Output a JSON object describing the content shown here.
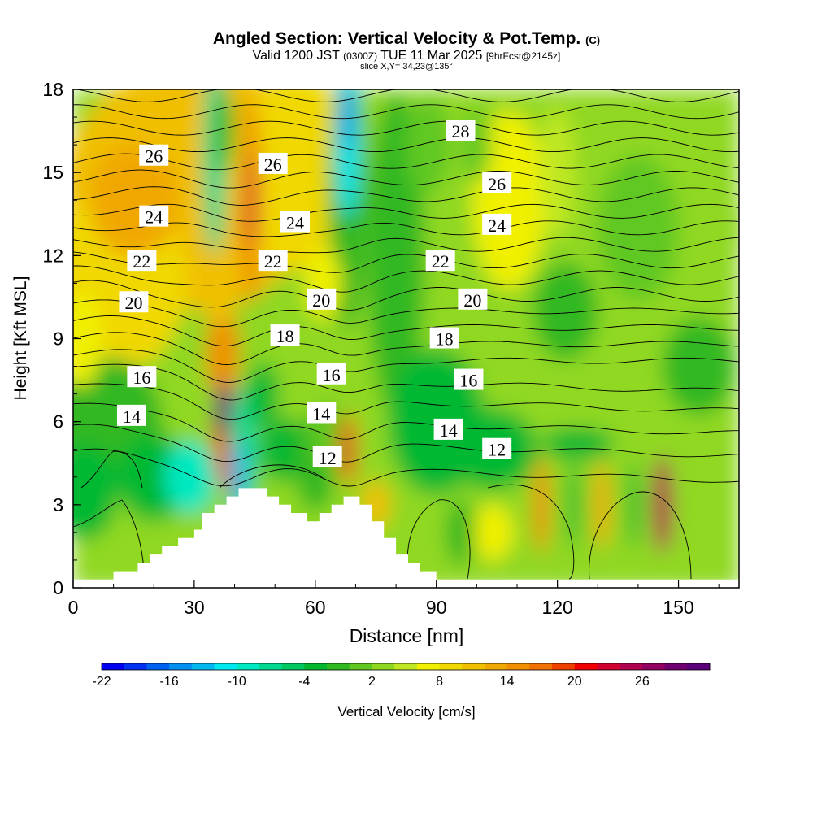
{
  "figure": {
    "title_main": "Angled Section: Vertical Velocity & Pot.Temp.",
    "title_units": "(C)",
    "subtitle_valid": "Valid 1200 JST",
    "subtitle_utc": "(0300Z)",
    "subtitle_date": "TUE 11 Mar 2025",
    "subtitle_fcst": "[9hrFcst@2145z]",
    "slice_label": "slice X,Y= 34,23@135°"
  },
  "chart_data": {
    "type": "heatmap",
    "title": "Angled Section: Vertical Velocity & Pot.Temp. (C)",
    "xlabel": "Distance [nm]",
    "ylabel": "Height [Kft MSL]",
    "xlim": [
      0,
      165
    ],
    "ylim": [
      0,
      18
    ],
    "x_ticks": [
      0,
      30,
      60,
      90,
      120,
      150
    ],
    "y_ticks": [
      0,
      3,
      6,
      9,
      12,
      15,
      18
    ],
    "colorbar": {
      "label": "Vertical Velocity [cm/s]",
      "tick_labels": [
        "-22",
        "-16",
        "-10",
        "-4",
        "2",
        "8",
        "14",
        "20",
        "26"
      ],
      "levels": [
        -22,
        -20,
        -18,
        -16,
        -14,
        -12,
        -10,
        -8,
        -6,
        -4,
        -2,
        0,
        2,
        4,
        6,
        8,
        10,
        12,
        14,
        16,
        18,
        20,
        22,
        24,
        26,
        28,
        30
      ],
      "colors": [
        "#0000f0",
        "#0030f0",
        "#0060f0",
        "#0090f0",
        "#00b8f0",
        "#00e8f0",
        "#00e8c0",
        "#00d890",
        "#00c860",
        "#00b830",
        "#30b820",
        "#60c820",
        "#90d820",
        "#c0e820",
        "#f0f000",
        "#f0d800",
        "#f0c000",
        "#f0a800",
        "#f09000",
        "#f07000",
        "#f04000",
        "#f00000",
        "#d00030",
        "#b00050",
        "#900060",
        "#700070",
        "#5a0078"
      ]
    },
    "velocity_features": [
      {
        "x": 37,
        "z": 6.5,
        "value": 30
      },
      {
        "x": 44,
        "z": 14,
        "value": 20
      },
      {
        "x": 68,
        "z": 5,
        "value": 22
      },
      {
        "x": 41,
        "z": 4,
        "value": -14
      },
      {
        "x": 68,
        "z": 17,
        "value": -20
      },
      {
        "x": 29,
        "z": 4,
        "value": -10
      },
      {
        "x": 15,
        "z": 14,
        "value": 12
      },
      {
        "x": 108,
        "z": 14,
        "value": 6
      },
      {
        "x": 146,
        "z": 3,
        "value": 24
      },
      {
        "x": 116,
        "z": 3,
        "value": 14
      },
      {
        "x": 131,
        "z": 3,
        "value": 12
      }
    ],
    "theta_contour_labels": [
      {
        "text": "26",
        "x": 20,
        "z": 15.6
      },
      {
        "text": "24",
        "x": 20,
        "z": 13.4
      },
      {
        "text": "22",
        "x": 17,
        "z": 11.8
      },
      {
        "text": "20",
        "x": 15,
        "z": 10.3
      },
      {
        "text": "16",
        "x": 17,
        "z": 7.6
      },
      {
        "text": "14",
        "x": 14.5,
        "z": 6.2
      },
      {
        "text": "26",
        "x": 49.5,
        "z": 15.3
      },
      {
        "text": "24",
        "x": 55,
        "z": 13.2
      },
      {
        "text": "22",
        "x": 49.5,
        "z": 11.8
      },
      {
        "text": "18",
        "x": 52.5,
        "z": 9.1
      },
      {
        "text": "20",
        "x": 61.5,
        "z": 10.4
      },
      {
        "text": "16",
        "x": 64,
        "z": 7.7
      },
      {
        "text": "14",
        "x": 61.5,
        "z": 6.3
      },
      {
        "text": "12",
        "x": 63,
        "z": 4.7
      },
      {
        "text": "28",
        "x": 96,
        "z": 16.5
      },
      {
        "text": "26",
        "x": 105,
        "z": 14.6
      },
      {
        "text": "24",
        "x": 105,
        "z": 13.1
      },
      {
        "text": "22",
        "x": 91,
        "z": 11.8
      },
      {
        "text": "20",
        "x": 99,
        "z": 10.4
      },
      {
        "text": "18",
        "x": 92,
        "z": 9
      },
      {
        "text": "16",
        "x": 98,
        "z": 7.5
      },
      {
        "text": "14",
        "x": 93,
        "z": 5.7
      },
      {
        "text": "12",
        "x": 105,
        "z": 5
      }
    ],
    "terrain_steps": [
      [
        0,
        0.3
      ],
      [
        10,
        0.6
      ],
      [
        16,
        0.9
      ],
      [
        19,
        1.2
      ],
      [
        22,
        1.5
      ],
      [
        26,
        1.8
      ],
      [
        30,
        2.1
      ],
      [
        32,
        2.7
      ],
      [
        35,
        3.0
      ],
      [
        38,
        3.3
      ],
      [
        41,
        3.6
      ],
      [
        45,
        3.6
      ],
      [
        48,
        3.3
      ],
      [
        51,
        3.0
      ],
      [
        54,
        2.7
      ],
      [
        58,
        2.4
      ],
      [
        61,
        2.7
      ],
      [
        64,
        3.0
      ],
      [
        67,
        3.3
      ],
      [
        71,
        3.0
      ],
      [
        74,
        2.4
      ],
      [
        77,
        1.8
      ],
      [
        80,
        1.2
      ],
      [
        83,
        0.9
      ],
      [
        86,
        0.6
      ],
      [
        90,
        0.3
      ],
      [
        165,
        0.3
      ]
    ]
  }
}
